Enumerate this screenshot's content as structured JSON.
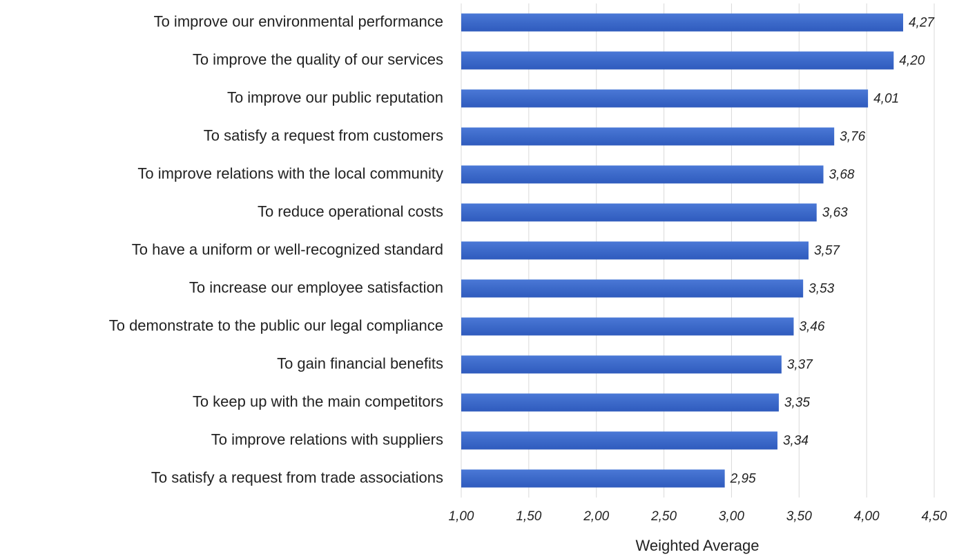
{
  "chart_data": {
    "type": "barh",
    "x_label": "Weighted Average",
    "categories": [
      "To improve our environmental performance",
      "To improve the quality of our services",
      "To improve our public reputation",
      "To satisfy a request from customers",
      "To improve relations with the local community",
      "To reduce operational costs",
      "To have a uniform or well-recognized standard",
      "To increase our employee satisfaction",
      "To demonstrate to the public our legal compliance",
      "To gain financial benefits",
      "To keep up with the main competitors",
      "To improve relations with suppliers",
      "To satisfy a request from trade associations"
    ],
    "values": [
      4.27,
      4.2,
      4.01,
      3.76,
      3.68,
      3.63,
      3.57,
      3.53,
      3.46,
      3.37,
      3.35,
      3.34,
      2.95
    ],
    "value_labels": [
      "4,27",
      "4,20",
      "4,01",
      "3,76",
      "3,68",
      "3,63",
      "3,57",
      "3,53",
      "3,46",
      "3,37",
      "3,35",
      "3,34",
      "2,95"
    ],
    "color": "#3a66c8",
    "xlim": [
      1.0,
      4.5
    ],
    "xticks": [
      {
        "value": 1.0,
        "label": "1,00"
      },
      {
        "value": 1.5,
        "label": "1,50"
      },
      {
        "value": 2.0,
        "label": "2,00"
      },
      {
        "value": 2.5,
        "label": "2,50"
      },
      {
        "value": 3.0,
        "label": "3,00"
      },
      {
        "value": 3.5,
        "label": "3,50"
      },
      {
        "value": 4.0,
        "label": "4,00"
      },
      {
        "value": 4.5,
        "label": "4,50"
      }
    ],
    "grid": true
  }
}
